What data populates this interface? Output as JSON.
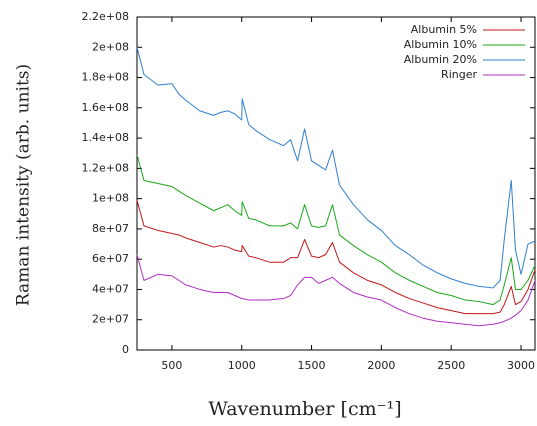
{
  "chart_data": {
    "type": "line",
    "xlabel": "Wavenumber [cm⁻¹]",
    "ylabel": "Raman intensity (arb. units)",
    "x": [
      250,
      300,
      400,
      500,
      550,
      600,
      700,
      800,
      850,
      900,
      950,
      1000,
      1003,
      1050,
      1100,
      1200,
      1300,
      1350,
      1400,
      1450,
      1500,
      1550,
      1600,
      1650,
      1700,
      1800,
      1900,
      2000,
      2100,
      2200,
      2300,
      2400,
      2500,
      2600,
      2700,
      2800,
      2850,
      2880,
      2930,
      2960,
      3000,
      3050,
      3100
    ],
    "series": [
      {
        "name": "Albumin 5%",
        "color": "#c0181c",
        "values": [
          99000000.0,
          82000000.0,
          79000000.0,
          77000000.0,
          76000000.0,
          74000000.0,
          71000000.0,
          68000000.0,
          69000000.0,
          68000000.0,
          66000000.0,
          65000000.0,
          69000000.0,
          62000000.0,
          61000000.0,
          58000000.0,
          58000000.0,
          61000000.0,
          61000000.0,
          73000000.0,
          62000000.0,
          61000000.0,
          63000000.0,
          71000000.0,
          58000000.0,
          51000000.0,
          46000000.0,
          43000000.0,
          38000000.0,
          34000000.0,
          31000000.0,
          28000000.0,
          26000000.0,
          24000000.0,
          24000000.0,
          24000000.0,
          25000000.0,
          30000000.0,
          42000000.0,
          30000000.0,
          32000000.0,
          40000000.0,
          53000000.0
        ]
      },
      {
        "name": "Albumin 10%",
        "color": "#1aa81a",
        "values": [
          129000000.0,
          112000000.0,
          110000000.0,
          108000000.0,
          105000000.0,
          102000000.0,
          97000000.0,
          92000000.0,
          94000000.0,
          96000000.0,
          92000000.0,
          89000000.0,
          98000000.0,
          87000000.0,
          86000000.0,
          82000000.0,
          82000000.0,
          84000000.0,
          80000000.0,
          96000000.0,
          82000000.0,
          81000000.0,
          82000000.0,
          96000000.0,
          76000000.0,
          69000000.0,
          63000000.0,
          58000000.0,
          51000000.0,
          46000000.0,
          42000000.0,
          38000000.0,
          36000000.0,
          33000000.0,
          32000000.0,
          30000000.0,
          33000000.0,
          43000000.0,
          61000000.0,
          40000000.0,
          40000000.0,
          46000000.0,
          56000000.0
        ]
      },
      {
        "name": "Albumin 20%",
        "color": "#2f7fd0",
        "values": [
          200000000.0,
          182000000.0,
          175000000.0,
          176000000.0,
          169000000.0,
          165000000.0,
          158000000.0,
          155000000.0,
          157000000.0,
          158000000.0,
          156000000.0,
          152000000.0,
          166000000.0,
          149000000.0,
          145000000.0,
          139000000.0,
          135000000.0,
          139000000.0,
          125000000.0,
          146000000.0,
          125000000.0,
          122000000.0,
          119000000.0,
          132000000.0,
          109000000.0,
          96000000.0,
          86000000.0,
          79000000.0,
          69000000.0,
          63000000.0,
          56000000.0,
          51000000.0,
          47000000.0,
          44000000.0,
          42000000.0,
          41000000.0,
          46000000.0,
          73000000.0,
          112000000.0,
          66000000.0,
          50000000.0,
          70000000.0,
          72000000.0
        ]
      },
      {
        "name": "Ringer",
        "color": "#b030c0",
        "values": [
          63000000.0,
          46000000.0,
          50000000.0,
          49000000.0,
          46000000.0,
          43000000.0,
          40000000.0,
          38000000.0,
          38000000.0,
          38000000.0,
          36000000.0,
          34000000.0,
          34000000.0,
          33000000.0,
          33000000.0,
          33000000.0,
          34000000.0,
          36000000.0,
          43000000.0,
          48000000.0,
          48000000.0,
          44000000.0,
          46000000.0,
          48000000.0,
          44000000.0,
          38000000.0,
          35000000.0,
          33000000.0,
          28000000.0,
          24000000.0,
          21000000.0,
          19000000.0,
          18000000.0,
          17000000.0,
          16000000.0,
          17000000.0,
          18000000.0,
          19000000.0,
          21000000.0,
          23000000.0,
          26000000.0,
          33000000.0,
          46000000.0
        ]
      }
    ],
    "xlim": [
      250,
      3100
    ],
    "xticks": [
      500,
      1000,
      1500,
      2000,
      2500,
      3000
    ],
    "ylim": [
      0,
      220000000.0
    ],
    "yticks": [
      0,
      {
        "value": 20000000.0,
        "label": "2e+07"
      },
      {
        "value": 40000000.0,
        "label": "4e+07"
      },
      {
        "value": 60000000.0,
        "label": "6e+07"
      },
      {
        "value": 80000000.0,
        "label": "8e+07"
      },
      {
        "value": 100000000.0,
        "label": "1e+08"
      },
      {
        "value": 120000000.0,
        "label": "1.2e+08"
      },
      {
        "value": 140000000.0,
        "label": "1.4e+08"
      },
      {
        "value": 160000000.0,
        "label": "1.6e+08"
      },
      {
        "value": 180000000.0,
        "label": "1.8e+08"
      },
      {
        "value": 200000000.0,
        "label": "2e+08"
      },
      {
        "value": 220000000.0,
        "label": "2.2e+08"
      }
    ],
    "legend": "upper-right",
    "grid": false
  }
}
